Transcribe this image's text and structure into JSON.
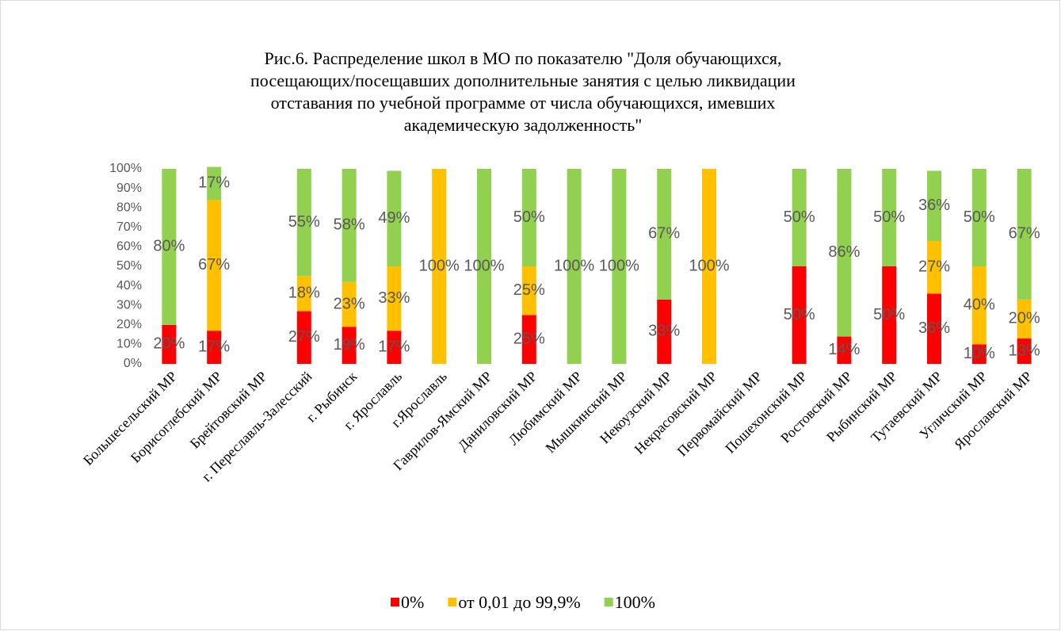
{
  "chart_data": {
    "type": "stacked_bar",
    "title_lines": [
      "Рис.6. Распределение школ в МО по показателю \"Доля обучающихся,",
      "посещающих/посещавших дополнительные занятия с целью ликвидации",
      "отставания по учебной программе от числа обучающихся, имевших",
      "академическую задолженность\""
    ],
    "categories": [
      "Большесельский МР",
      "Борисоглебский МР",
      "Брейтовский МР",
      "г. Переславль-Залесский",
      "г. Рыбинск",
      "г. Ярославль",
      "г.Ярославль",
      "Гаврилов-Ямский МР",
      "Даниловский МР",
      "Любимский МР",
      "Мышкинский МР",
      "Некоузский МР",
      "Некрасовский МР",
      "Первомайский МР",
      "Пошехонский МР",
      "Ростовский МР",
      "Рыбинский МР",
      "Тутаевский МР",
      "Угличский МР",
      "Ярославский МР"
    ],
    "series": [
      {
        "name": "0%",
        "color": "#ff0000",
        "values": [
          20,
          17,
          null,
          27,
          19,
          17,
          null,
          null,
          25,
          null,
          null,
          33,
          null,
          null,
          50,
          14,
          50,
          36,
          10,
          13
        ],
        "value_labels": [
          "20%",
          "17%",
          null,
          "27%",
          "19%",
          "17%",
          null,
          null,
          "25%",
          null,
          null,
          "33%",
          null,
          null,
          "50%",
          "14%",
          "50%",
          "36%",
          "10%",
          "13%"
        ]
      },
      {
        "name": "от 0,01 до 99,9%",
        "color": "#ffc000",
        "values": [
          null,
          67,
          null,
          18,
          23,
          33,
          100,
          null,
          25,
          null,
          null,
          null,
          100,
          null,
          null,
          null,
          null,
          27,
          40,
          20
        ],
        "value_labels": [
          null,
          "67%",
          null,
          "18%",
          "23%",
          "33%",
          "100%",
          null,
          "25%",
          null,
          null,
          null,
          "100%",
          null,
          null,
          null,
          null,
          "27%",
          "40%",
          "20%"
        ]
      },
      {
        "name": "100%",
        "color": "#92d050",
        "values": [
          80,
          17,
          null,
          55,
          58,
          49,
          null,
          100,
          50,
          100,
          100,
          67,
          null,
          null,
          50,
          86,
          50,
          36,
          50,
          67
        ],
        "value_labels": [
          "80%",
          "17%",
          null,
          "55%",
          "58%",
          "49%",
          null,
          "100%",
          "50%",
          "100%",
          "100%",
          "67%",
          null,
          null,
          "50%",
          "86%",
          "50%",
          "36%",
          "50%",
          "67%"
        ]
      }
    ],
    "ylim": [
      0,
      100
    ],
    "yticks": [
      {
        "value": 0,
        "label": "0%"
      },
      {
        "value": 10,
        "label": "10%"
      },
      {
        "value": 20,
        "label": "20%"
      },
      {
        "value": 30,
        "label": "30%"
      },
      {
        "value": 40,
        "label": "40%"
      },
      {
        "value": 50,
        "label": "50%"
      },
      {
        "value": 60,
        "label": "60%"
      },
      {
        "value": 70,
        "label": "70%"
      },
      {
        "value": 80,
        "label": "80%"
      },
      {
        "value": 90,
        "label": "90%"
      },
      {
        "value": 100,
        "label": "100%"
      }
    ],
    "legend": "bottom"
  }
}
